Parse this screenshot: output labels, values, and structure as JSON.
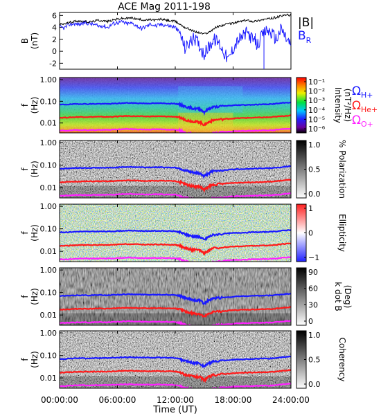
{
  "chart_data": {
    "type": "line",
    "title": "ACE Mag 2011-198",
    "xlabel": "Time (UT)",
    "x_ticks": [
      "00:00:00",
      "06:00:00",
      "12:00:00",
      "18:00:00",
      "24:00:00"
    ],
    "x_range_hours": [
      0,
      24
    ],
    "panel_b": {
      "ylabel": "B",
      "yunit": "(nT)",
      "y_ticks": [
        "6",
        "4",
        "2",
        "0",
        "-2"
      ],
      "ylim": [
        -3,
        6.5
      ],
      "legend": [
        {
          "label": "|B|",
          "color": "#000000"
        },
        {
          "label": "B",
          "subscript": "R",
          "color": "#1a1aff"
        }
      ],
      "series": [
        {
          "name": "|B|",
          "color": "#000000",
          "x": [
            0,
            0.5,
            1,
            1.5,
            2,
            2.5,
            3,
            3.5,
            4,
            4.5,
            5,
            5.5,
            6,
            6.5,
            7,
            7.5,
            8,
            8.5,
            9,
            9.5,
            10,
            10.5,
            11,
            11.5,
            12,
            12.5,
            13,
            13.5,
            14,
            14.5,
            15,
            15.5,
            16,
            16.5,
            17,
            17.5,
            18,
            18.5,
            19,
            19.5,
            20,
            20.5,
            21,
            21.5,
            22,
            22.5,
            23,
            23.5,
            24
          ],
          "y": [
            4.5,
            4.6,
            4.8,
            5.0,
            5.1,
            5.0,
            4.9,
            5.0,
            5.2,
            5.1,
            5.0,
            5.2,
            5.4,
            5.5,
            5.5,
            5.6,
            5.4,
            5.3,
            5.2,
            5.3,
            5.2,
            5.4,
            5.2,
            5.1,
            5.0,
            4.5,
            4.0,
            3.7,
            3.3,
            3.1,
            2.9,
            3.2,
            3.8,
            4.2,
            4.4,
            4.6,
            4.7,
            4.9,
            5.1,
            5.2,
            5.0,
            5.1,
            5.3,
            5.4,
            5.5,
            5.7,
            5.9,
            6.1,
            6.0
          ]
        },
        {
          "name": "B_R",
          "color": "#1a1aff",
          "x": [
            0,
            0.5,
            1,
            1.5,
            2,
            2.5,
            3,
            3.5,
            4,
            4.5,
            5,
            5.5,
            6,
            6.5,
            7,
            7.5,
            8,
            8.5,
            9,
            9.5,
            10,
            10.5,
            11,
            11.5,
            12,
            12.5,
            13,
            13.5,
            14,
            14.5,
            15,
            15.5,
            16,
            16.5,
            17,
            17.5,
            18,
            18.5,
            19,
            19.5,
            20,
            20.5,
            21,
            21.5,
            22,
            22.5,
            23,
            23.5,
            24
          ],
          "y": [
            4.0,
            3.9,
            4.5,
            4.6,
            4.5,
            4.8,
            4.7,
            4.5,
            4.2,
            4.3,
            4.0,
            4.6,
            4.8,
            4.9,
            4.6,
            4.7,
            4.3,
            3.8,
            4.2,
            4.6,
            4.2,
            4.5,
            4.4,
            4.2,
            4.0,
            3.0,
            0.5,
            1.5,
            2.2,
            1.0,
            -0.5,
            0.8,
            2.0,
            1.5,
            0.0,
            -1.5,
            0.5,
            1.8,
            2.5,
            3.2,
            2.0,
            1.0,
            2.5,
            3.6,
            3.0,
            2.0,
            3.8,
            2.2,
            1.0
          ]
        }
      ]
    },
    "gyro_lines": {
      "x": [
        0,
        1,
        2,
        3,
        4,
        5,
        6,
        7,
        8,
        9,
        10,
        11,
        12,
        12.5,
        13,
        13.5,
        14,
        14.5,
        15,
        15.5,
        16,
        17,
        18,
        19,
        20,
        21,
        22,
        23,
        24
      ],
      "H+": [
        0.07,
        0.072,
        0.076,
        0.075,
        0.077,
        0.076,
        0.08,
        0.084,
        0.082,
        0.08,
        0.081,
        0.08,
        0.078,
        0.07,
        0.058,
        0.05,
        0.046,
        0.045,
        0.032,
        0.045,
        0.055,
        0.06,
        0.065,
        0.068,
        0.07,
        0.072,
        0.074,
        0.082,
        0.09
      ],
      "He+": [
        0.0175,
        0.018,
        0.019,
        0.019,
        0.0193,
        0.019,
        0.02,
        0.021,
        0.0205,
        0.02,
        0.0203,
        0.02,
        0.0195,
        0.0175,
        0.0145,
        0.0125,
        0.0115,
        0.0112,
        0.008,
        0.0112,
        0.0138,
        0.015,
        0.0163,
        0.017,
        0.0175,
        0.018,
        0.0185,
        0.0205,
        0.0225
      ],
      "O+": [
        0.0044,
        0.0045,
        0.0048,
        0.0047,
        0.0048,
        0.0048,
        0.005,
        0.0053,
        0.0051,
        0.005,
        0.0051,
        0.005,
        0.0049,
        0.0044,
        0.0036,
        0.0031,
        0.0029,
        0.0028,
        0.002,
        0.0028,
        0.0034,
        0.0038,
        0.0041,
        0.0043,
        0.0044,
        0.0045,
        0.0046,
        0.0051,
        0.0056
      ]
    },
    "spectral_panels": [
      {
        "name": "Intensity",
        "colorbar_label": "Intensity",
        "colorbar_unit": "(nT²/Hz)",
        "colorbar_ticks": [
          "10⁻¹",
          "10⁻²",
          "10⁻³",
          "10⁻⁴",
          "10⁻⁵",
          "10⁻⁶"
        ],
        "ylabel": "f",
        "yunit": "(Hz)",
        "y_ticks": [
          "1.00",
          "0.10",
          "0.01"
        ],
        "colormap": "rainbow"
      },
      {
        "name": "% Polarization",
        "colorbar_label": "% Polarization",
        "colorbar_ticks": [
          "1.0",
          "0.5",
          "0.0"
        ],
        "ylabel": "f",
        "yunit": "(Hz)",
        "y_ticks": [
          "1.00",
          "0.10",
          "0.01"
        ],
        "colormap": "gray"
      },
      {
        "name": "Ellipticity",
        "colorbar_label": "Ellipticity",
        "colorbar_ticks": [
          "1",
          "0",
          "−1"
        ],
        "ylabel": "f",
        "yunit": "(Hz)",
        "y_ticks": [
          "1.00",
          "0.10",
          "0.01"
        ],
        "colormap": "bluewhitered"
      },
      {
        "name": "k dot B",
        "colorbar_label": "k dot B",
        "colorbar_unit": "(Deg)",
        "colorbar_ticks": [
          "90",
          "60",
          "30",
          "0"
        ],
        "ylabel": "f",
        "yunit": "(Hz)",
        "y_ticks": [
          "1.00",
          "0.10",
          "0.01"
        ],
        "colormap": "gray"
      },
      {
        "name": "Coherency",
        "colorbar_label": "Coherency",
        "colorbar_ticks": [
          "1.0",
          "0.5",
          "0.0"
        ],
        "ylabel": "f",
        "yunit": "(Hz)",
        "y_ticks": [
          "1.00",
          "0.10",
          "0.01"
        ],
        "colormap": "gray"
      }
    ],
    "ion_legend": [
      {
        "symbol": "Ω",
        "sub": "H+",
        "color": "#1a1aff"
      },
      {
        "symbol": "Ω",
        "sub": "He+",
        "color": "#ff1a1a"
      },
      {
        "symbol": "Ω",
        "sub": "O+",
        "color": "#ff22ff"
      }
    ]
  }
}
